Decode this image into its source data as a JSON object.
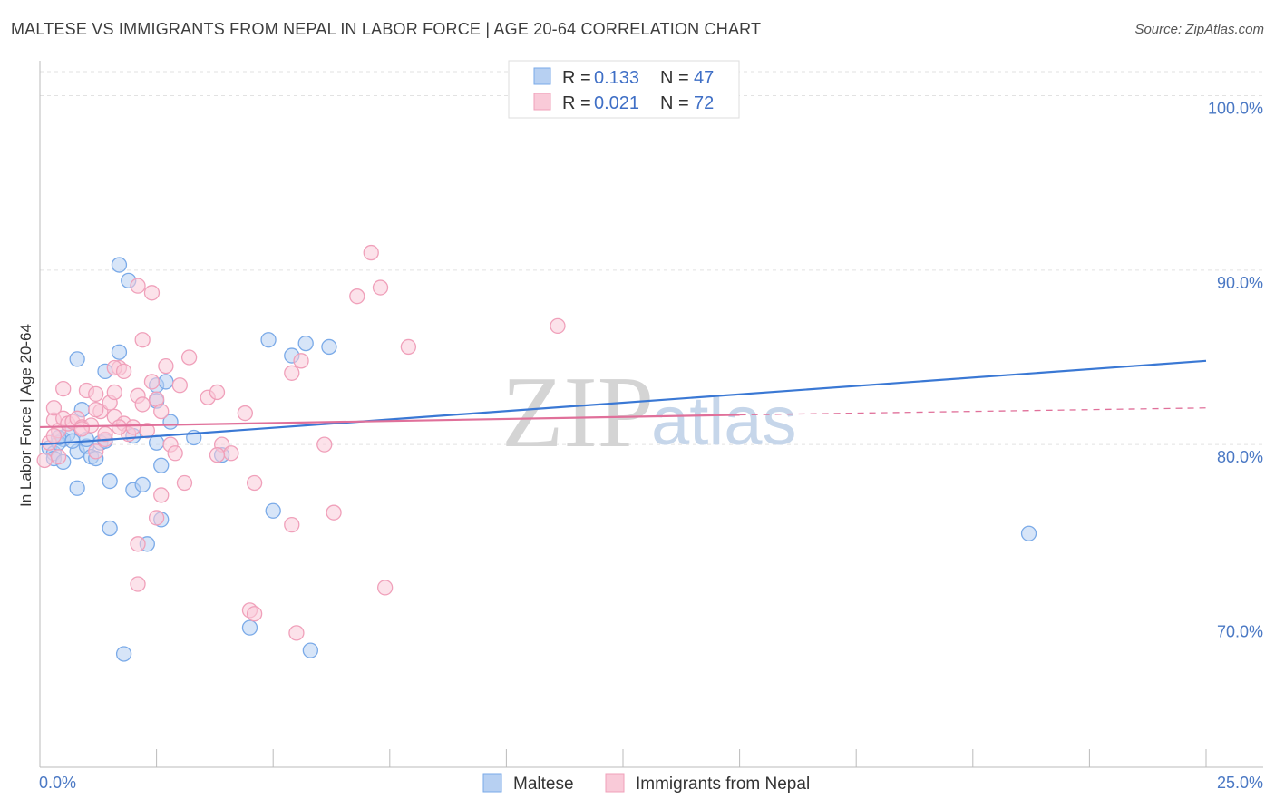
{
  "chart_data": {
    "type": "scatter",
    "title": "MALTESE VS IMMIGRANTS FROM NEPAL IN LABOR FORCE | AGE 20-64 CORRELATION CHART",
    "source": "Source: ZipAtlas.com",
    "ylabel": "In Labor Force | Age 20-64",
    "xlim": [
      0,
      25
    ],
    "ylim": [
      61.5,
      102
    ],
    "x_tick_labels": [
      "0.0%",
      "25.0%"
    ],
    "y_ticks": [
      {
        "value": 100,
        "label": "100.0%"
      },
      {
        "value": 90,
        "label": "90.0%"
      },
      {
        "value": 80,
        "label": "80.0%"
      },
      {
        "value": 70,
        "label": "70.0%"
      }
    ],
    "watermark": {
      "zip": "ZIP",
      "atlas": "atlas"
    },
    "legend": {
      "r_label": "R =",
      "n_label": "N =",
      "entries": [
        {
          "r": "0.133",
          "n": "47"
        },
        {
          "r": "0.021",
          "n": "72"
        }
      ]
    },
    "series": [
      {
        "name": "Maltese",
        "color": "#7aaae8",
        "fill": "#b7d0f2",
        "line_color": "#3a78d4",
        "trend": {
          "x": [
            0,
            25
          ],
          "y": [
            80.0,
            84.8
          ]
        },
        "points": [
          [
            0.2,
            79.8
          ],
          [
            0.3,
            79.5
          ],
          [
            0.5,
            80.3
          ],
          [
            0.6,
            80.6
          ],
          [
            0.4,
            80.1
          ],
          [
            0.3,
            79.2
          ],
          [
            0.5,
            79.0
          ],
          [
            0.8,
            79.6
          ],
          [
            0.9,
            82.0
          ],
          [
            1.0,
            79.9
          ],
          [
            1.1,
            79.3
          ],
          [
            1.2,
            79.2
          ],
          [
            1.3,
            80.1
          ],
          [
            1.4,
            80.2
          ],
          [
            0.8,
            84.9
          ],
          [
            1.4,
            84.2
          ],
          [
            1.7,
            85.3
          ],
          [
            1.7,
            90.3
          ],
          [
            1.9,
            89.4
          ],
          [
            2.0,
            80.5
          ],
          [
            2.5,
            80.1
          ],
          [
            2.5,
            83.4
          ],
          [
            2.5,
            82.5
          ],
          [
            2.7,
            83.6
          ],
          [
            2.8,
            81.3
          ],
          [
            3.3,
            80.4
          ],
          [
            2.6,
            78.8
          ],
          [
            1.5,
            77.9
          ],
          [
            2.0,
            77.4
          ],
          [
            2.2,
            77.7
          ],
          [
            0.8,
            77.5
          ],
          [
            1.5,
            75.2
          ],
          [
            2.6,
            75.7
          ],
          [
            2.3,
            74.3
          ],
          [
            3.9,
            79.4
          ],
          [
            4.9,
            86.0
          ],
          [
            5.4,
            85.1
          ],
          [
            5.7,
            85.8
          ],
          [
            6.2,
            85.6
          ],
          [
            5.0,
            76.2
          ],
          [
            4.5,
            69.5
          ],
          [
            1.8,
            68.0
          ],
          [
            5.8,
            68.2
          ],
          [
            21.2,
            74.9
          ],
          [
            0.4,
            80.4
          ],
          [
            1.0,
            80.3
          ],
          [
            0.7,
            80.2
          ]
        ]
      },
      {
        "name": "Immigrants from Nepal",
        "color": "#f0a0ba",
        "fill": "#f9cad8",
        "line_color": "#e0709a",
        "trend": {
          "x": [
            0,
            15
          ],
          "y": [
            81.0,
            81.7
          ]
        },
        "trend_ext": {
          "x": [
            15,
            25
          ],
          "y": [
            81.7,
            82.1
          ]
        },
        "points": [
          [
            0.1,
            79.1
          ],
          [
            0.2,
            80.1
          ],
          [
            0.3,
            81.4
          ],
          [
            0.3,
            82.1
          ],
          [
            0.4,
            80.8
          ],
          [
            0.5,
            81.5
          ],
          [
            0.6,
            81.2
          ],
          [
            0.5,
            83.2
          ],
          [
            0.7,
            81.3
          ],
          [
            0.8,
            81.5
          ],
          [
            0.9,
            81.0
          ],
          [
            1.0,
            83.1
          ],
          [
            1.1,
            81.1
          ],
          [
            1.2,
            79.6
          ],
          [
            1.2,
            82.9
          ],
          [
            1.3,
            81.9
          ],
          [
            1.4,
            80.3
          ],
          [
            1.5,
            82.4
          ],
          [
            1.6,
            83.0
          ],
          [
            1.6,
            81.6
          ],
          [
            1.7,
            84.4
          ],
          [
            1.8,
            81.2
          ],
          [
            1.9,
            80.6
          ],
          [
            2.0,
            81.0
          ],
          [
            2.1,
            82.8
          ],
          [
            2.2,
            82.3
          ],
          [
            2.3,
            80.8
          ],
          [
            2.4,
            83.6
          ],
          [
            2.5,
            82.6
          ],
          [
            2.6,
            81.9
          ],
          [
            2.7,
            84.5
          ],
          [
            2.8,
            80.0
          ],
          [
            2.9,
            79.5
          ],
          [
            3.0,
            83.4
          ],
          [
            3.2,
            85.0
          ],
          [
            3.1,
            77.8
          ],
          [
            3.6,
            82.7
          ],
          [
            3.8,
            83.0
          ],
          [
            3.9,
            80.0
          ],
          [
            4.1,
            79.5
          ],
          [
            4.4,
            81.8
          ],
          [
            4.6,
            77.8
          ],
          [
            5.4,
            84.1
          ],
          [
            5.6,
            84.8
          ],
          [
            6.1,
            80.0
          ],
          [
            6.3,
            76.1
          ],
          [
            6.8,
            88.5
          ],
          [
            7.1,
            91.0
          ],
          [
            7.3,
            89.0
          ],
          [
            7.9,
            85.6
          ],
          [
            11.1,
            86.8
          ],
          [
            2.1,
            89.1
          ],
          [
            2.4,
            88.7
          ],
          [
            2.2,
            86.0
          ],
          [
            1.2,
            82.0
          ],
          [
            2.6,
            77.1
          ],
          [
            2.5,
            75.8
          ],
          [
            2.1,
            74.3
          ],
          [
            2.1,
            72.0
          ],
          [
            5.4,
            75.4
          ],
          [
            4.5,
            70.5
          ],
          [
            4.6,
            70.3
          ],
          [
            5.5,
            69.2
          ],
          [
            7.4,
            71.8
          ],
          [
            1.6,
            84.4
          ],
          [
            1.8,
            84.2
          ],
          [
            0.9,
            80.9
          ],
          [
            1.4,
            80.6
          ],
          [
            0.4,
            79.3
          ],
          [
            1.7,
            81.0
          ],
          [
            0.3,
            80.5
          ],
          [
            3.8,
            79.4
          ]
        ]
      }
    ]
  }
}
